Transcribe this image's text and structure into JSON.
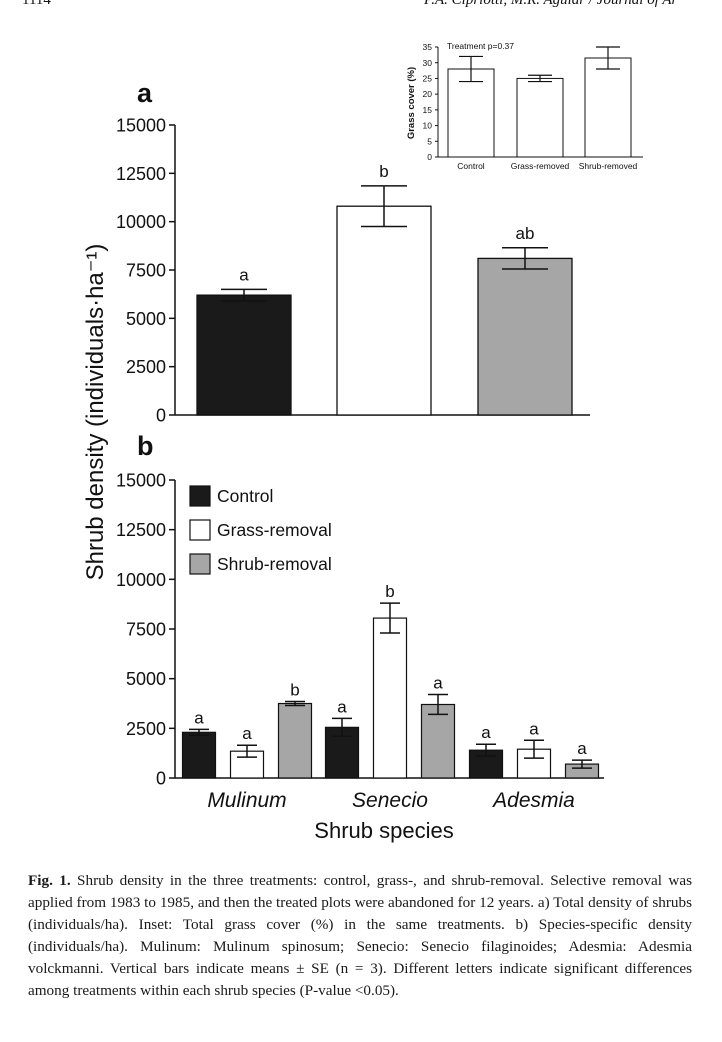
{
  "header": {
    "page_number": "1114",
    "journal": "P.A. Cipriotti, M.R. Aguiar / Journal of Ar"
  },
  "shared_ylabel": "Shrub density (individuals·ha⁻¹)",
  "colors": {
    "Control": "#1a1a1a",
    "Grass-removal": "#ffffff",
    "Shrub-removal": "#a6a6a6"
  },
  "chart_data": [
    {
      "panel": "a",
      "type": "bar",
      "label": "a",
      "categories": [
        "Control",
        "Grass-removal",
        "Shrub-removal"
      ],
      "values": [
        6200,
        10800,
        8100
      ],
      "errors": [
        300,
        1050,
        550
      ],
      "letters": [
        "a",
        "b",
        "ab"
      ],
      "ylim": [
        0,
        15000
      ],
      "yticks": [
        "0",
        "2500",
        "5000",
        "7500",
        "10000",
        "12500",
        "15000"
      ]
    },
    {
      "panel": "inset",
      "type": "bar",
      "title": "Treatment p=0.37",
      "ylabel": "Grass cover (%)",
      "categories": [
        "Control",
        "Grass-removed",
        "Shrub-removed"
      ],
      "values": [
        28,
        25,
        31.5
      ],
      "errors": [
        4,
        1,
        3.5
      ],
      "ylim": [
        0,
        35
      ],
      "yticks": [
        "0",
        "5",
        "10",
        "15",
        "20",
        "25",
        "30",
        "35"
      ]
    },
    {
      "panel": "b",
      "type": "bar",
      "label": "b",
      "xlabel": "Shrub species",
      "categories": [
        "Mulinum",
        "Senecio",
        "Adesmia"
      ],
      "series": [
        {
          "name": "Control",
          "values": [
            2300,
            2550,
            1400
          ],
          "errors": [
            150,
            450,
            300
          ],
          "letters": [
            "a",
            "a",
            "a"
          ]
        },
        {
          "name": "Grass-removal",
          "values": [
            1350,
            8050,
            1450
          ],
          "errors": [
            300,
            750,
            450
          ],
          "letters": [
            "a",
            "b",
            "a"
          ]
        },
        {
          "name": "Shrub-removal",
          "values": [
            3750,
            3700,
            700
          ],
          "errors": [
            100,
            500,
            200
          ],
          "letters": [
            "b",
            "a",
            "a"
          ]
        }
      ],
      "legend": "top-left",
      "ylim": [
        0,
        15000
      ],
      "yticks": [
        "0",
        "2500",
        "5000",
        "7500",
        "10000",
        "12500",
        "15000"
      ]
    }
  ],
  "caption": {
    "lead": "Fig. 1.",
    "text": "Shrub density in the three treatments: control, grass-, and shrub-removal. Selective removal was applied from 1983 to 1985, and then the treated plots were abandoned for 12 years. a) Total density of shrubs (individuals/ha). Inset: Total grass cover (%) in the same treatments. b) Species-specific density (individuals/ha). Mulinum: Mulinum spinosum; Senecio: Senecio filaginoides; Adesmia: Adesmia volckmanni. Vertical bars indicate means ± SE (n = 3). Different letters indicate significant differences among treatments within each shrub species (P-value <0.05)."
  }
}
